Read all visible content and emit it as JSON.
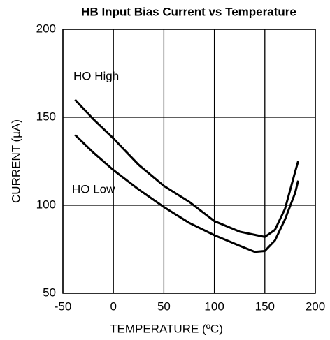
{
  "chart_data": {
    "type": "line",
    "title": "HB Input Bias Current vs Temperature",
    "x_label": "TEMPERATURE (ºC)",
    "y_label": "CURRENT (µA)",
    "annotations": [
      "HO High",
      "HO Low"
    ],
    "series": [
      {
        "name": "HO High",
        "color": "#000000",
        "x": [
          -38,
          -20,
          0,
          25,
          50,
          75,
          100,
          125,
          150,
          160,
          170,
          180,
          183
        ],
        "values": [
          160,
          149,
          138,
          123,
          111,
          102,
          91,
          85,
          82,
          86,
          98,
          119,
          125
        ]
      },
      {
        "name": "HO Low",
        "color": "#000000",
        "x": [
          -38,
          -20,
          0,
          25,
          50,
          75,
          100,
          125,
          140,
          150,
          160,
          170,
          180,
          183
        ],
        "values": [
          140,
          130,
          120,
          109,
          99,
          90,
          83,
          77,
          73.5,
          74,
          80,
          92,
          107,
          114
        ]
      }
    ],
    "xlim": [
      -50,
      200
    ],
    "xticks": [
      -50,
      0,
      50,
      100,
      150,
      200
    ],
    "ylim": [
      50,
      200
    ],
    "yticks": [
      50,
      100,
      150,
      200
    ],
    "grid": true
  }
}
